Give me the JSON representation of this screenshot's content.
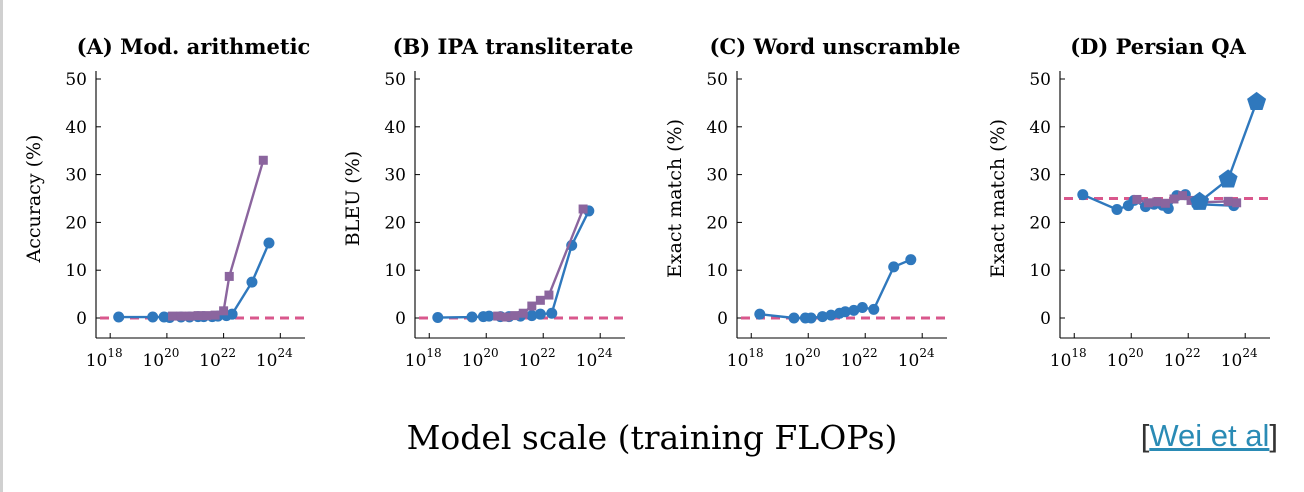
{
  "figure": {
    "x_title": "Model scale (training FLOPs)",
    "citation": {
      "open": "[",
      "text": "Wei et al",
      "close": "]"
    },
    "colors": {
      "blue": "#2f78bd",
      "purple": "#8b659e",
      "baseline": "#d9578c"
    }
  },
  "chart_data": [
    {
      "type": "line",
      "title": "(A) Mod. arithmetic",
      "ylabel": "Accuracy (%)",
      "ylim": [
        0,
        50
      ],
      "yticks": [
        0,
        10,
        20,
        30,
        40,
        50
      ],
      "x_scale": "log",
      "xlim_exp": [
        17.5,
        24.8
      ],
      "xtick_exps": [
        18,
        20,
        22,
        24
      ],
      "baseline": 0,
      "series": [
        {
          "marker": "circle",
          "color": "blue",
          "x_exp": [
            18.3,
            19.5,
            19.9,
            20.1,
            20.5,
            20.8,
            21.1,
            21.3,
            21.6,
            21.8,
            22.1,
            22.3,
            23.0,
            23.6
          ],
          "y": [
            0.2,
            0.2,
            0.2,
            0.1,
            0.2,
            0.2,
            0.3,
            0.3,
            0.3,
            0.4,
            0.5,
            0.8,
            7.5,
            15.7
          ]
        },
        {
          "marker": "square",
          "color": "purple",
          "x_exp": [
            20.2,
            20.5,
            20.8,
            21.1,
            21.4,
            21.7,
            22.0,
            22.2,
            23.4
          ],
          "y": [
            0.4,
            0.4,
            0.4,
            0.5,
            0.5,
            0.6,
            1.5,
            8.7,
            33.0
          ]
        }
      ]
    },
    {
      "type": "line",
      "title": "(B) IPA transliterate",
      "ylabel": "BLEU (%)",
      "ylim": [
        0,
        50
      ],
      "yticks": [
        0,
        10,
        20,
        30,
        40,
        50
      ],
      "x_scale": "log",
      "xlim_exp": [
        17.5,
        24.8
      ],
      "xtick_exps": [
        18,
        20,
        22,
        24
      ],
      "baseline": 0,
      "series": [
        {
          "marker": "circle",
          "color": "blue",
          "x_exp": [
            18.3,
            19.5,
            19.9,
            20.1,
            20.5,
            20.8,
            21.2,
            21.6,
            21.9,
            22.3,
            23.0,
            23.6
          ],
          "y": [
            0.1,
            0.2,
            0.3,
            0.4,
            0.3,
            0.3,
            0.4,
            0.5,
            0.8,
            1.0,
            15.2,
            22.4
          ]
        },
        {
          "marker": "square",
          "color": "purple",
          "x_exp": [
            20.4,
            20.7,
            21.0,
            21.3,
            21.6,
            21.9,
            22.2,
            23.4
          ],
          "y": [
            0.4,
            0.2,
            0.5,
            1.0,
            2.5,
            3.7,
            4.8,
            22.8
          ]
        }
      ]
    },
    {
      "type": "line",
      "title": "(C) Word unscramble",
      "ylabel": "Exact match (%)",
      "ylim": [
        0,
        50
      ],
      "yticks": [
        0,
        10,
        20,
        30,
        40,
        50
      ],
      "x_scale": "log",
      "xlim_exp": [
        17.5,
        24.8
      ],
      "xtick_exps": [
        18,
        20,
        22,
        24
      ],
      "baseline": 0,
      "series": [
        {
          "marker": "circle",
          "color": "blue",
          "x_exp": [
            18.3,
            19.5,
            19.9,
            20.1,
            20.5,
            20.8,
            21.1,
            21.3,
            21.6,
            21.9,
            22.3,
            23.0,
            23.6
          ],
          "y": [
            0.8,
            0.0,
            0.0,
            0.0,
            0.3,
            0.6,
            1.0,
            1.3,
            1.6,
            2.2,
            1.8,
            10.7,
            12.2
          ]
        }
      ]
    },
    {
      "type": "line",
      "title": "(D) Persian QA",
      "ylabel": "Exact match (%)",
      "ylim": [
        0,
        50
      ],
      "yticks": [
        0,
        10,
        20,
        30,
        40,
        50
      ],
      "x_scale": "log",
      "xlim_exp": [
        17.5,
        24.8
      ],
      "xtick_exps": [
        18,
        20,
        22,
        24
      ],
      "baseline": 25,
      "series": [
        {
          "marker": "circle",
          "color": "blue",
          "x_exp": [
            18.3,
            19.5,
            19.9,
            20.1,
            20.5,
            20.8,
            21.1,
            21.3,
            21.6,
            21.9,
            22.3,
            23.6
          ],
          "y": [
            25.8,
            22.7,
            23.5,
            24.6,
            23.3,
            23.8,
            23.6,
            22.9,
            25.6,
            25.8,
            23.8,
            23.5
          ]
        },
        {
          "marker": "square",
          "color": "purple",
          "x_exp": [
            20.2,
            20.6,
            20.9,
            21.2,
            21.5,
            21.8,
            22.1,
            22.4,
            23.4,
            23.7
          ],
          "y": [
            24.8,
            24.1,
            24.3,
            24.0,
            24.9,
            25.6,
            24.6,
            24.2,
            24.4,
            24.1
          ]
        },
        {
          "marker": "pentagon",
          "color": "blue",
          "x_exp": [
            22.4,
            23.4,
            24.4
          ],
          "y": [
            24.3,
            29.0,
            45.2
          ]
        }
      ]
    }
  ]
}
